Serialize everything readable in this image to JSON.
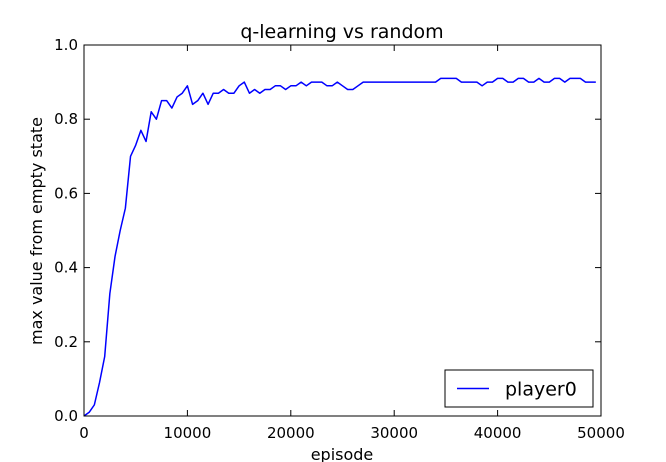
{
  "chart_data": {
    "type": "line",
    "title": "q-learning vs random",
    "xlabel": "episode",
    "ylabel": "max value from empty state",
    "xlim": [
      0,
      50000
    ],
    "ylim": [
      0.0,
      1.0
    ],
    "xticks": [
      0,
      10000,
      20000,
      30000,
      40000,
      50000
    ],
    "xtick_labels": [
      "0",
      "10000",
      "20000",
      "30000",
      "40000",
      "50000"
    ],
    "yticks": [
      0.0,
      0.2,
      0.4,
      0.6,
      0.8,
      1.0
    ],
    "ytick_labels": [
      "0.0",
      "0.2",
      "0.4",
      "0.6",
      "0.8",
      "1.0"
    ],
    "grid": false,
    "legend_position": "bottom-right",
    "series": [
      {
        "name": "player0",
        "color": "#0000ff",
        "x": [
          0,
          500,
          1000,
          1500,
          2000,
          2500,
          3000,
          3500,
          4000,
          4500,
          5000,
          5500,
          6000,
          6500,
          7000,
          7500,
          8000,
          8500,
          9000,
          9500,
          10000,
          10500,
          11000,
          11500,
          12000,
          12500,
          13000,
          13500,
          14000,
          14500,
          15000,
          15500,
          16000,
          16500,
          17000,
          17500,
          18000,
          18500,
          19000,
          19500,
          20000,
          20500,
          21000,
          21500,
          22000,
          22500,
          23000,
          23500,
          24000,
          24500,
          25000,
          25500,
          26000,
          26500,
          27000,
          27500,
          28000,
          28500,
          29000,
          29500,
          30000,
          30500,
          31000,
          31500,
          32000,
          32500,
          33000,
          33500,
          34000,
          34500,
          35000,
          35500,
          36000,
          36500,
          37000,
          37500,
          38000,
          38500,
          39000,
          39500,
          40000,
          40500,
          41000,
          41500,
          42000,
          42500,
          43000,
          43500,
          44000,
          44500,
          45000,
          45500,
          46000,
          46500,
          47000,
          47500,
          48000,
          48500,
          49000,
          49500
        ],
        "values": [
          0.0,
          0.01,
          0.03,
          0.09,
          0.16,
          0.33,
          0.43,
          0.5,
          0.56,
          0.7,
          0.73,
          0.77,
          0.74,
          0.82,
          0.8,
          0.85,
          0.85,
          0.83,
          0.86,
          0.87,
          0.89,
          0.84,
          0.85,
          0.87,
          0.84,
          0.87,
          0.87,
          0.88,
          0.87,
          0.87,
          0.89,
          0.9,
          0.87,
          0.88,
          0.87,
          0.88,
          0.88,
          0.89,
          0.89,
          0.88,
          0.89,
          0.89,
          0.9,
          0.89,
          0.9,
          0.9,
          0.9,
          0.89,
          0.89,
          0.9,
          0.89,
          0.88,
          0.88,
          0.89,
          0.9,
          0.9,
          0.9,
          0.9,
          0.9,
          0.9,
          0.9,
          0.9,
          0.9,
          0.9,
          0.9,
          0.9,
          0.9,
          0.9,
          0.9,
          0.91,
          0.91,
          0.91,
          0.91,
          0.9,
          0.9,
          0.9,
          0.9,
          0.89,
          0.9,
          0.9,
          0.91,
          0.91,
          0.9,
          0.9,
          0.91,
          0.91,
          0.9,
          0.9,
          0.91,
          0.9,
          0.9,
          0.91,
          0.91,
          0.9,
          0.91,
          0.91,
          0.91,
          0.9,
          0.9,
          0.9
        ]
      }
    ]
  }
}
